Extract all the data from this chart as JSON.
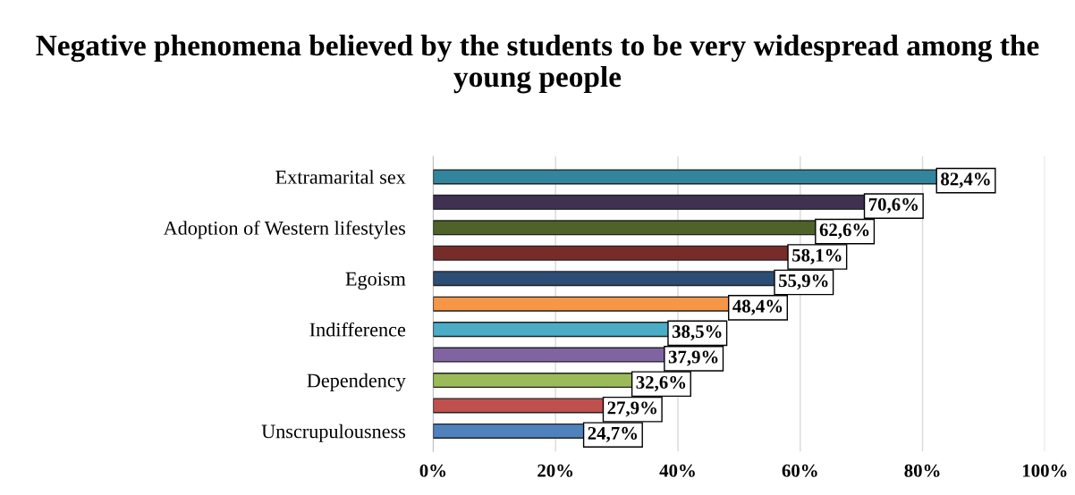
{
  "chart_data": {
    "type": "bar",
    "orientation": "horizontal",
    "title": "Negative phenomena believed by the students to be very widespread among the young people",
    "categories": [
      "Extramarital sex",
      null,
      "Adoption of Western lifestyles",
      null,
      "Egoism",
      null,
      "Indifference",
      null,
      "Dependency",
      null,
      "Unscrupulousness"
    ],
    "values": [
      82.4,
      70.6,
      62.6,
      58.1,
      55.9,
      48.4,
      38.5,
      37.9,
      32.6,
      27.9,
      24.7
    ],
    "value_labels": [
      "82,4%",
      "70,6%",
      "62,6%",
      "58,1%",
      "55,9%",
      "48,4%",
      "38,5%",
      "37,9%",
      "32,6%",
      "27,9%",
      "24,7%"
    ],
    "colors": [
      "#31859c",
      "#403152",
      "#4f6228",
      "#772c2a",
      "#2c4d75",
      "#f79646",
      "#4bacc6",
      "#8064a2",
      "#9bbb59",
      "#c0504d",
      "#4f81bd"
    ],
    "xlim": [
      0,
      100
    ],
    "xticks": [
      {
        "value": 0,
        "label": "0%"
      },
      {
        "value": 20,
        "label": "20%"
      },
      {
        "value": 40,
        "label": "40%"
      },
      {
        "value": 60,
        "label": "60%"
      },
      {
        "value": 80,
        "label": "80%"
      },
      {
        "value": 100,
        "label": "100%"
      }
    ],
    "grid": "x"
  }
}
